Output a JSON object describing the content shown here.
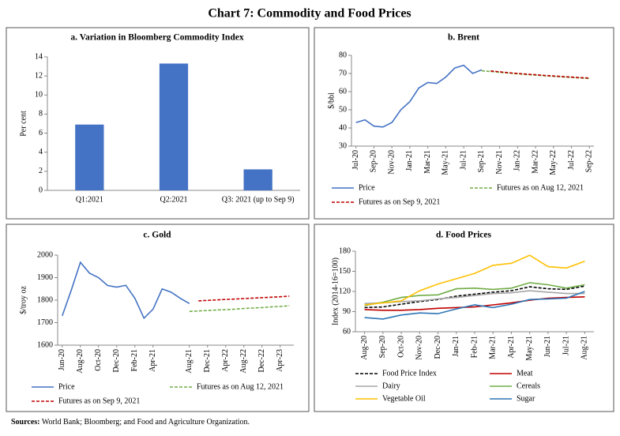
{
  "title": "Chart 7: Commodity and Food Prices",
  "source": {
    "label": "Sources:",
    "text": "World Bank; Bloomberg; and Food and Agriculture Organization."
  },
  "chart_data": [
    {
      "type": "bar",
      "title": "a. Variation in Bloomberg Commodity Index",
      "ylabel": "Per cent",
      "categories": [
        "Q1:2021",
        "Q2:2021",
        "Q3: 2021 (up to Sep 9)"
      ],
      "values": [
        6.9,
        13.3,
        2.2
      ],
      "color": "#4472c4",
      "ylim": [
        0,
        14
      ],
      "yticks": [
        0,
        2,
        4,
        6,
        8,
        10,
        12,
        14
      ]
    },
    {
      "type": "line",
      "title": "b. Brent",
      "ylabel": "$/bbl",
      "categories": [
        "Jul-20",
        null,
        "Sep-20",
        null,
        "Nov-20",
        null,
        "Jan-21",
        null,
        "Mar-21",
        null,
        "May-21",
        null,
        "Jul-21",
        null,
        "Sep-21",
        null,
        "Nov-21",
        null,
        "Jan-22",
        null,
        "Mar-22",
        null,
        "May-22",
        null,
        "Jul-22",
        null,
        "Sep-22"
      ],
      "series": [
        {
          "name": "Price",
          "color": "#4472c4",
          "values": [
            43,
            44.5,
            41,
            40.5,
            43,
            50,
            54.5,
            62,
            65,
            64.5,
            68,
            73,
            74.5,
            70,
            72,
            null,
            null,
            null,
            null,
            null,
            null,
            null,
            null,
            null,
            null,
            null,
            null
          ]
        },
        {
          "name": "Futures as on Aug 12, 2021",
          "color": "#70ad47",
          "style": "dashed",
          "values": [
            null,
            null,
            null,
            null,
            null,
            null,
            null,
            null,
            null,
            null,
            null,
            null,
            null,
            null,
            71.5,
            71.1,
            70.6,
            70.2,
            69.8,
            69.4,
            69.1,
            68.7,
            68.4,
            68.1,
            67.8,
            67.5,
            67.2
          ]
        },
        {
          "name": "Futures as on Sep 9, 2021",
          "color": "#c00000",
          "style": "dashed",
          "values": [
            null,
            null,
            null,
            null,
            null,
            null,
            null,
            null,
            null,
            null,
            null,
            null,
            null,
            null,
            null,
            71.4,
            70.9,
            70.4,
            70.0,
            69.6,
            69.3,
            68.9,
            68.6,
            68.3,
            68.0,
            67.7,
            67.5
          ]
        }
      ],
      "ylim": [
        30,
        80
      ],
      "yticks": [
        30,
        40,
        50,
        60,
        70,
        80
      ]
    },
    {
      "type": "line",
      "title": "c. Gold",
      "ylabel": "$/troy oz",
      "categories": [
        "Jun-20",
        null,
        "Aug-20",
        null,
        "Oct-20",
        null,
        "Dec-20",
        null,
        "Feb-21",
        null,
        "Apr-21",
        null,
        null,
        null,
        "Aug-21",
        null,
        "Dec-21",
        null,
        "Apr-22",
        null,
        "Aug-22",
        null,
        "Dec-22",
        null,
        "Apr-23",
        null
      ],
      "series": [
        {
          "name": "Price",
          "color": "#4472c4",
          "values": [
            1730,
            1845,
            1968,
            1920,
            1900,
            1865,
            1858,
            1866,
            1808,
            1720,
            1760,
            1850,
            1835,
            1808,
            1785,
            null,
            null,
            null,
            null,
            null,
            null,
            null,
            null,
            null,
            null,
            null
          ]
        },
        {
          "name": "Futures as on Aug 12, 2021",
          "color": "#70ad47",
          "style": "dashed",
          "values": [
            null,
            null,
            null,
            null,
            null,
            null,
            null,
            null,
            null,
            null,
            null,
            null,
            null,
            null,
            1750,
            1752,
            1754,
            1756,
            1758,
            1760,
            1763,
            1765,
            1767,
            1770,
            1772,
            1775
          ]
        },
        {
          "name": "Futures as on Sep 9, 2021",
          "color": "#c00000",
          "style": "dashed",
          "values": [
            null,
            null,
            null,
            null,
            null,
            null,
            null,
            null,
            null,
            null,
            null,
            null,
            null,
            null,
            null,
            1797,
            1799,
            1801,
            1803,
            1805,
            1807,
            1809,
            1811,
            1813,
            1815,
            1818
          ]
        }
      ],
      "ylim": [
        1600,
        2000
      ],
      "yticks": [
        1600,
        1700,
        1800,
        1900,
        2000
      ]
    },
    {
      "type": "line",
      "title": "d. Food Prices",
      "ylabel": "Index (2014-16=100)",
      "categories": [
        "Aug-20",
        "Sep-20",
        "Oct-20",
        "Nov-20",
        "Dec-20",
        "Jan-21",
        "Feb-21",
        "Mar-21",
        "Apr-21",
        "May-21",
        "Jun-21",
        "Jul-21",
        "Aug-21"
      ],
      "series": [
        {
          "name": "Food Price Index",
          "color": "#000000",
          "style": "dashed",
          "values": [
            96,
            97,
            101,
            105,
            108,
            113,
            116,
            119,
            121,
            127,
            124,
            123,
            128
          ]
        },
        {
          "name": "Meat",
          "color": "#c00000",
          "values": [
            93,
            92,
            92,
            93,
            95,
            96,
            97,
            100,
            103,
            107,
            110,
            111,
            112
          ]
        },
        {
          "name": "Dairy",
          "color": "#a6a6a6",
          "values": [
            102,
            103,
            105,
            106,
            109,
            111,
            114,
            117,
            118,
            121,
            119,
            117,
            117
          ]
        },
        {
          "name": "Cereals",
          "color": "#70ad47",
          "values": [
            99,
            104,
            111,
            114,
            115,
            124,
            125,
            123,
            125,
            133,
            130,
            125,
            130
          ]
        },
        {
          "name": "Vegetable Oil",
          "color": "#ffc000",
          "values": [
            100,
            103,
            106,
            121,
            131,
            139,
            147,
            159,
            162,
            174,
            157,
            155,
            165
          ]
        },
        {
          "name": "Sugar",
          "color": "#2e75b6",
          "values": [
            81,
            79,
            85,
            88,
            87,
            94,
            100,
            96,
            101,
            108,
            109,
            110,
            120
          ]
        }
      ],
      "ylim": [
        60,
        180
      ],
      "yticks": [
        60,
        90,
        120,
        150,
        180
      ]
    }
  ]
}
